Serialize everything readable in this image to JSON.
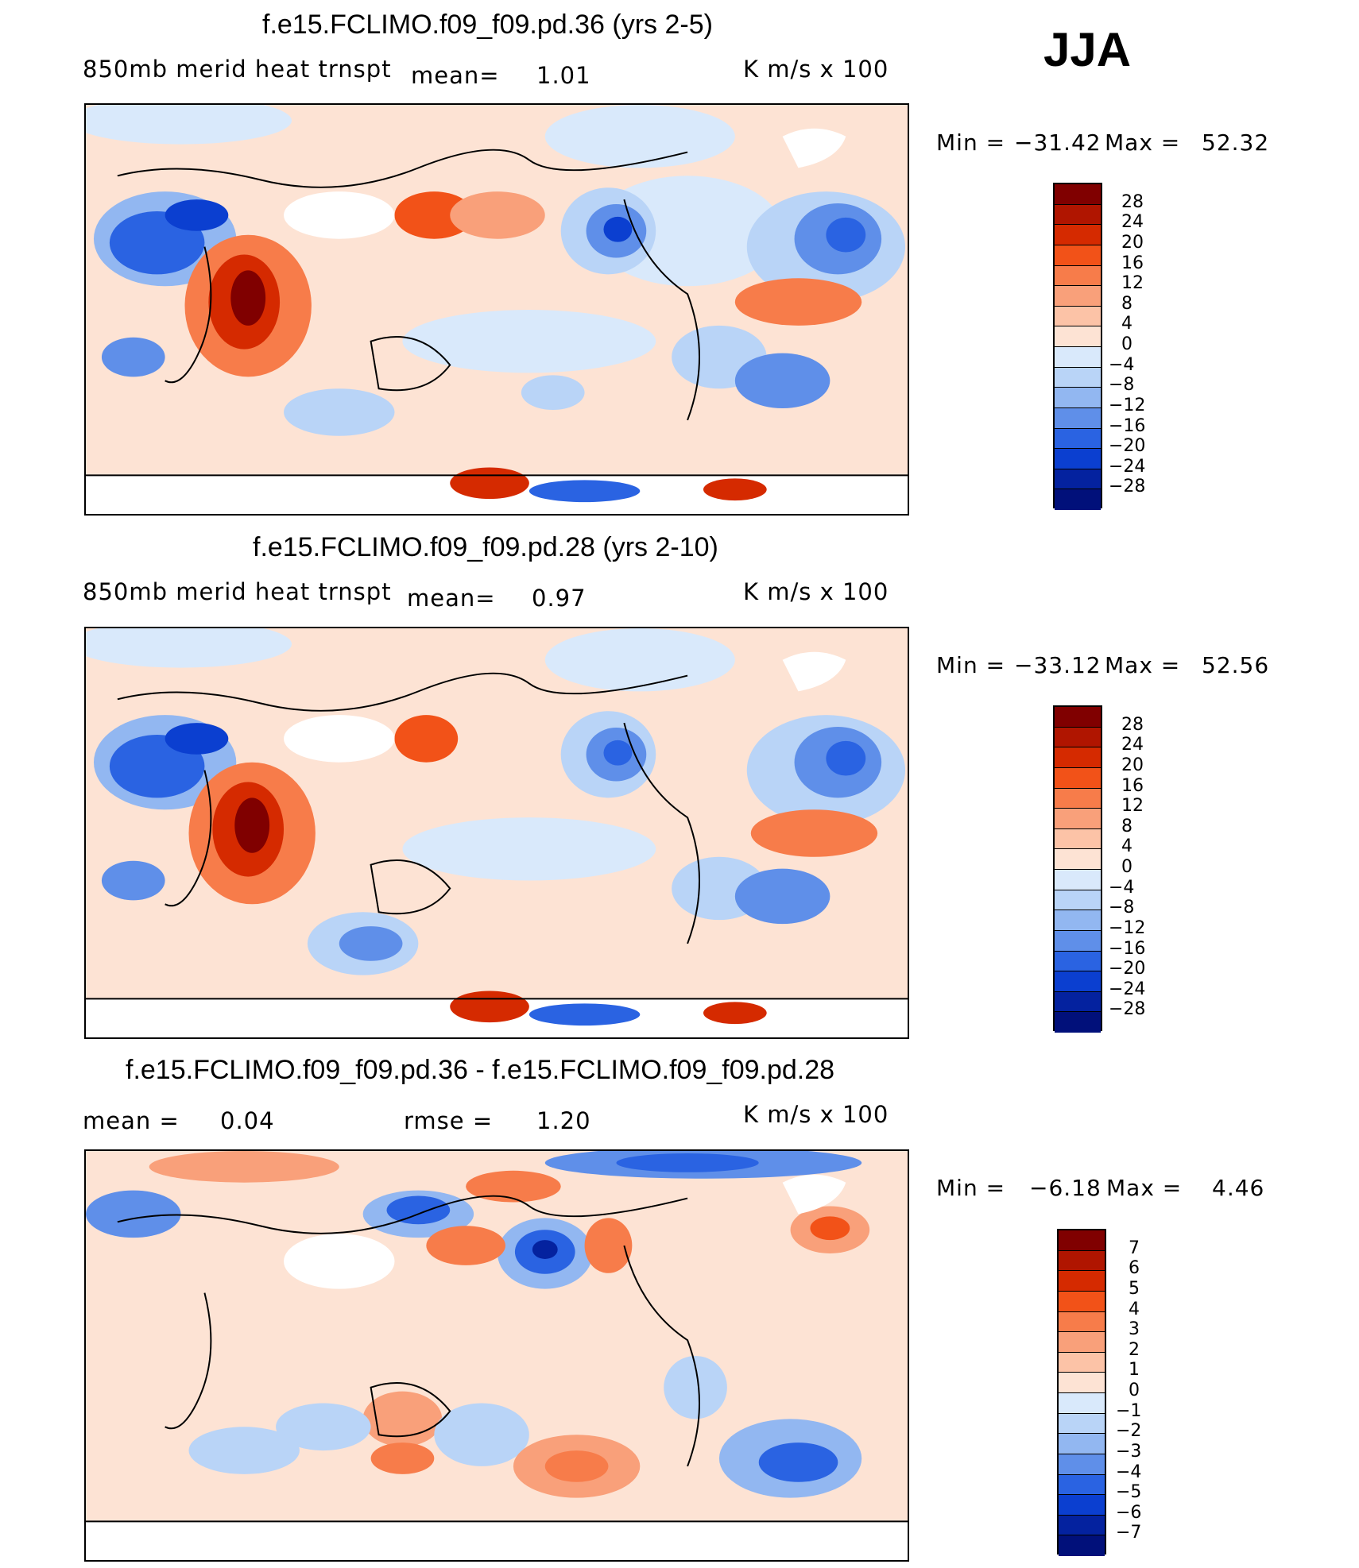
{
  "season": "JJA",
  "panels": [
    {
      "title": "f.e15.FCLIMO.f09_f09.pd.36 (yrs 2-5)",
      "variable": "850mb merid heat trnspt",
      "mean_label": "mean=",
      "mean_value": "1.01",
      "units": "K m/s x 100",
      "min_label": "Min =",
      "min_value": "−31.42",
      "max_label": "Max =",
      "max_value": "52.32"
    },
    {
      "title": "f.e15.FCLIMO.f09_f09.pd.28 (yrs 2-10)",
      "variable": "850mb merid heat trnspt",
      "mean_label": "mean=",
      "mean_value": "0.97",
      "units": "K m/s x 100",
      "min_label": "Min =",
      "min_value": "−33.12",
      "max_label": "Max =",
      "max_value": "52.56"
    },
    {
      "title": "f.e15.FCLIMO.f09_f09.pd.36 - f.e15.FCLIMO.f09_f09.pd.28",
      "mean_label": "mean =",
      "mean_value": "0.04",
      "rmse_label": "rmse =",
      "rmse_value": "1.20",
      "units": "K m/s x 100",
      "min_label": "Min =",
      "min_value": "−6.18",
      "max_label": "Max =",
      "max_value": "4.46"
    }
  ],
  "legend_full": {
    "labels": [
      "28",
      "24",
      "20",
      "16",
      "12",
      "8",
      "4",
      "0",
      "−4",
      "−8",
      "−12",
      "−16",
      "−20",
      "−24",
      "−28"
    ],
    "colors": [
      "#800000",
      "#b01500",
      "#d52a00",
      "#f25218",
      "#f77c4a",
      "#f9a07a",
      "#fcc3a7",
      "#fde3d4",
      "#d9e9fb",
      "#b9d4f7",
      "#92b7f1",
      "#5f8fe9",
      "#2a63e2",
      "#0b3fd0",
      "#04229f",
      "#01107a"
    ]
  },
  "legend_diff": {
    "labels": [
      "7",
      "6",
      "5",
      "4",
      "3",
      "2",
      "1",
      "0",
      "−1",
      "−2",
      "−3",
      "−4",
      "−5",
      "−6",
      "−7"
    ],
    "colors": [
      "#800000",
      "#b01500",
      "#d52a00",
      "#f25218",
      "#f77c4a",
      "#f9a07a",
      "#fcc3a7",
      "#fde3d4",
      "#d9e9fb",
      "#b9d4f7",
      "#92b7f1",
      "#5f8fe9",
      "#2a63e2",
      "#0b3fd0",
      "#04229f",
      "#01107a"
    ]
  }
}
